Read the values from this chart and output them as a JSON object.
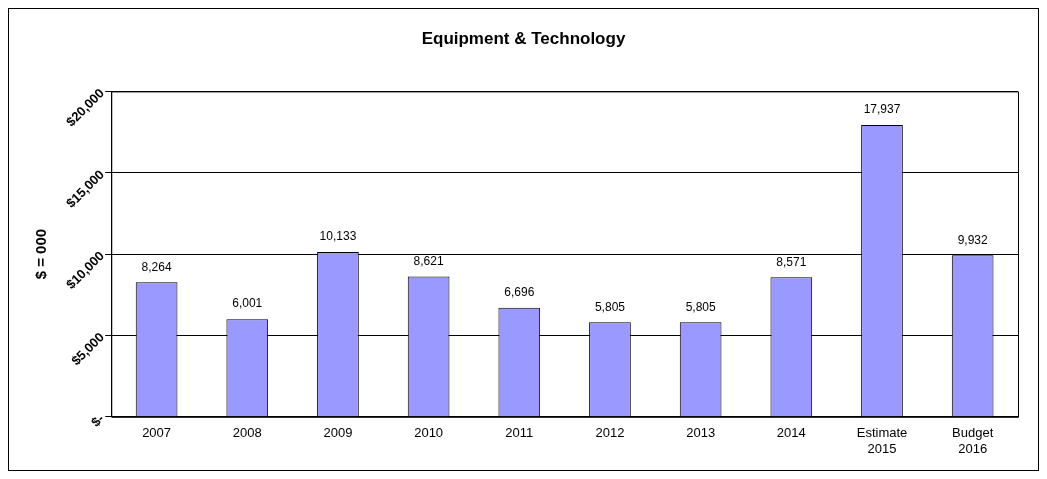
{
  "chart_data": {
    "type": "bar",
    "title": "Equipment & Technology",
    "ylabel": "$ = 000",
    "categories": [
      "2007",
      "2008",
      "2009",
      "2010",
      "2011",
      "2012",
      "2013",
      "2014",
      "Estimate 2015",
      "Budget 2016"
    ],
    "values": [
      8264,
      6001,
      10133,
      8621,
      6696,
      5805,
      5805,
      8571,
      17937,
      9932
    ],
    "color": "#9999ff",
    "ylim": [
      0,
      20000
    ],
    "yticks": [
      {
        "value": 0,
        "label": "$-"
      },
      {
        "value": 5000,
        "label": "$5,000"
      },
      {
        "value": 10000,
        "label": "$10,000"
      },
      {
        "value": 15000,
        "label": "$15,000"
      },
      {
        "value": 20000,
        "label": "$20,000"
      }
    ],
    "value_labels": [
      "8,264",
      "6,001",
      "10,133",
      "8,621",
      "6,696",
      "5,805",
      "5,805",
      "8,571",
      "17,937",
      "9,932"
    ],
    "grid": "y",
    "legend": false
  }
}
